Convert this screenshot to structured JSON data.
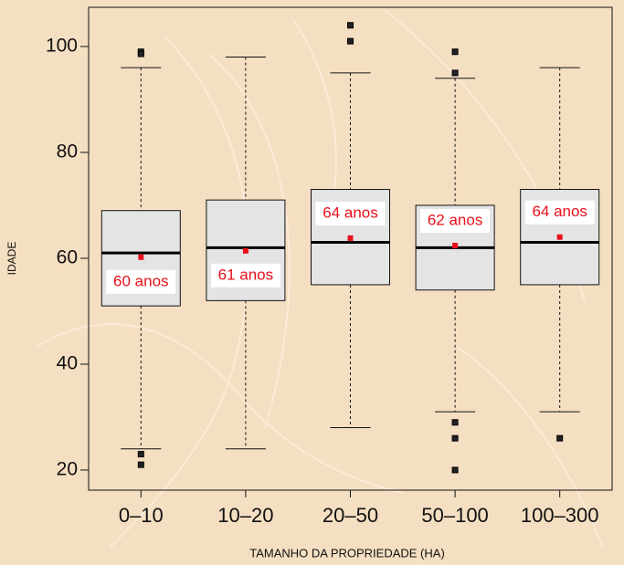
{
  "chart_data": {
    "type": "box",
    "x_label": "TAMANHO DA PROPRIEDADE (HA)",
    "y_label": "IDADE",
    "categories": [
      "0–10",
      "10–20",
      "20–50",
      "50–100",
      "100–300"
    ],
    "boxes": [
      {
        "whisker_low": 24,
        "q1": 51,
        "median": 61,
        "q3": 69,
        "whisker_high": 96,
        "outliers": [
          99,
          98.6,
          23,
          21
        ]
      },
      {
        "whisker_low": 24,
        "q1": 52,
        "median": 62,
        "q3": 71,
        "whisker_high": 98,
        "outliers": []
      },
      {
        "whisker_low": 28,
        "q1": 55,
        "median": 63,
        "q3": 73,
        "whisker_high": 95,
        "outliers": [
          104,
          101
        ]
      },
      {
        "whisker_low": 31,
        "q1": 54,
        "median": 62,
        "q3": 70,
        "whisker_high": 94,
        "outliers": [
          99,
          95,
          29,
          26,
          20
        ]
      },
      {
        "whisker_low": 31,
        "q1": 55,
        "median": 63,
        "q3": 73,
        "whisker_high": 96,
        "outliers": [
          26
        ]
      }
    ],
    "means": {
      "values": [
        60.2,
        61.4,
        63.8,
        62.4,
        64
      ],
      "value_labels": [
        "60 anos",
        "61 anos",
        "64 anos",
        "62 anos",
        "64 anos"
      ],
      "color": "#e8101a"
    },
    "box_color": "#e4e4e4",
    "ylim": [
      16.2,
      107.4
    ],
    "yticks": [
      20,
      40,
      60,
      80,
      100
    ]
  }
}
